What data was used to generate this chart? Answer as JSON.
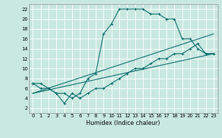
{
  "xlabel": "Humidex (Indice chaleur)",
  "xlim": [
    -0.5,
    23.5
  ],
  "ylim": [
    1,
    23
  ],
  "yticks": [
    2,
    4,
    6,
    8,
    10,
    12,
    14,
    16,
    18,
    20,
    22
  ],
  "xticks": [
    0,
    1,
    2,
    3,
    4,
    5,
    6,
    7,
    8,
    9,
    10,
    11,
    12,
    13,
    14,
    15,
    16,
    17,
    18,
    19,
    20,
    21,
    22,
    23
  ],
  "bg_color": "#c8e8e0",
  "grid_color": "#ffffff",
  "line_color": "#006666",
  "curve_main": {
    "x": [
      0,
      1,
      2,
      3,
      4,
      5,
      6,
      7,
      8,
      9,
      10,
      11,
      12,
      13,
      14,
      15,
      16,
      17,
      18,
      19,
      20,
      21,
      22,
      23
    ],
    "y": [
      7,
      7,
      6,
      5,
      5,
      4,
      5,
      8,
      9,
      17,
      19,
      22,
      22,
      22,
      22,
      21,
      21,
      20,
      20,
      16,
      16,
      14,
      13,
      13
    ]
  },
  "curve_lower": {
    "x": [
      0,
      1,
      2,
      3,
      4,
      5,
      6,
      7,
      8,
      9,
      10,
      11,
      12,
      13,
      14,
      15,
      16,
      17,
      18,
      19,
      20,
      21,
      22,
      23
    ],
    "y": [
      7,
      6,
      6,
      5,
      3,
      5,
      4,
      5,
      6,
      6,
      7,
      8,
      9,
      10,
      10,
      11,
      12,
      12,
      13,
      13,
      14,
      15,
      13,
      13
    ]
  },
  "line1": {
    "x": [
      0,
      23
    ],
    "y": [
      5,
      17
    ]
  },
  "line2": {
    "x": [
      0,
      23
    ],
    "y": [
      5,
      13
    ]
  }
}
